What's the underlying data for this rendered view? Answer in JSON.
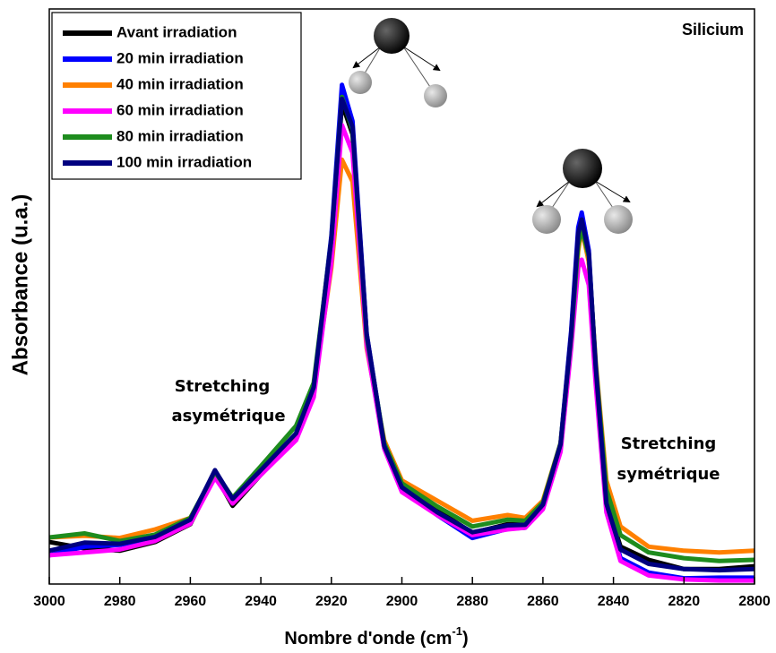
{
  "chart_data": {
    "type": "line",
    "title": "Silicium",
    "x_label": [
      "Nombre d'onde (cm",
      "-1",
      ")"
    ],
    "y_label": "Absorbance (u.a.)",
    "annotations": [
      [
        "Stretching",
        "asymétrique"
      ],
      [
        "Stretching",
        "symétrique"
      ]
    ],
    "x": [
      3000,
      2990,
      2980,
      2970,
      2960,
      2953,
      2948,
      2940,
      2930,
      2925,
      2920,
      2917,
      2914,
      2910,
      2905,
      2900,
      2890,
      2880,
      2870,
      2865,
      2860,
      2855,
      2852,
      2850,
      2849,
      2847,
      2845,
      2842,
      2838,
      2830,
      2820,
      2810,
      2800
    ],
    "xlim": [
      3000,
      2800
    ],
    "xticks": [
      3000,
      2980,
      2960,
      2940,
      2920,
      2900,
      2880,
      2860,
      2840,
      2820,
      2800
    ],
    "ylim": [
      0,
      100
    ],
    "legend": "top-left",
    "series": [
      {
        "name": "Avant irradiation",
        "color": "#000000",
        "values": [
          7.3,
          6.2,
          5.8,
          7.3,
          10.4,
          19.0,
          13.6,
          19.0,
          25.2,
          33.0,
          57.9,
          83.6,
          78.2,
          42.4,
          23.7,
          16.7,
          12.8,
          8.9,
          10.4,
          10.4,
          13.6,
          23.7,
          42.4,
          59.5,
          62.6,
          56.4,
          36.1,
          14.3,
          6.5,
          4.2,
          2.6,
          2.6,
          3.1
        ]
      },
      {
        "name": "20 min irradiation",
        "color": "#0000ff",
        "values": [
          5.0,
          6.5,
          6.8,
          8.0,
          11.0,
          19.5,
          14.5,
          19.8,
          26.0,
          34.0,
          60.5,
          86.8,
          80.5,
          43.5,
          24.2,
          16.5,
          12.0,
          8.0,
          9.6,
          9.8,
          13.2,
          24.5,
          44.0,
          62.0,
          64.6,
          58.0,
          37.0,
          13.0,
          4.5,
          2.0,
          1.0,
          1.1,
          1.1
        ]
      },
      {
        "name": "40 min irradiation",
        "color": "#ff8000",
        "values": [
          8.1,
          8.4,
          8.0,
          9.5,
          11.5,
          19.2,
          14.8,
          20.0,
          26.0,
          34.0,
          55.0,
          73.8,
          70.0,
          41.0,
          25.0,
          18.0,
          14.5,
          11.0,
          12.0,
          11.5,
          14.5,
          24.5,
          42.0,
          58.0,
          61.8,
          56.0,
          38.5,
          18.0,
          10.0,
          6.5,
          5.8,
          5.5,
          5.8
        ]
      },
      {
        "name": "60 min irradiation",
        "color": "#ff00ff",
        "values": [
          5.0,
          5.5,
          6.0,
          7.5,
          10.5,
          18.5,
          14.0,
          19.0,
          25.0,
          32.5,
          56.0,
          79.8,
          75.0,
          41.5,
          23.5,
          16.0,
          12.0,
          8.5,
          9.5,
          9.8,
          13.0,
          23.0,
          41.0,
          55.0,
          56.4,
          52.0,
          34.5,
          12.5,
          4.0,
          1.5,
          0.8,
          0.6,
          0.6
        ]
      },
      {
        "name": "80 min irradiation",
        "color": "#1e8c1e",
        "values": [
          8.1,
          8.8,
          7.5,
          8.6,
          11.5,
          19.5,
          15.0,
          20.5,
          27.5,
          35.0,
          60.0,
          84.7,
          79.0,
          43.0,
          24.5,
          17.5,
          13.5,
          10.0,
          11.2,
          11.0,
          14.2,
          24.5,
          43.0,
          59.0,
          61.8,
          57.0,
          38.0,
          16.5,
          8.5,
          5.5,
          4.5,
          4.0,
          4.2
        ]
      },
      {
        "name": "100 min irradiation",
        "color": "#000080",
        "values": [
          5.8,
          7.2,
          7.0,
          8.2,
          11.2,
          19.8,
          14.8,
          19.8,
          26.2,
          34.2,
          60.0,
          84.4,
          79.5,
          43.5,
          24.0,
          16.8,
          12.5,
          9.0,
          10.2,
          10.3,
          13.8,
          24.3,
          43.5,
          61.0,
          63.4,
          57.5,
          37.5,
          14.0,
          6.0,
          3.5,
          2.6,
          2.4,
          2.6
        ]
      }
    ]
  }
}
